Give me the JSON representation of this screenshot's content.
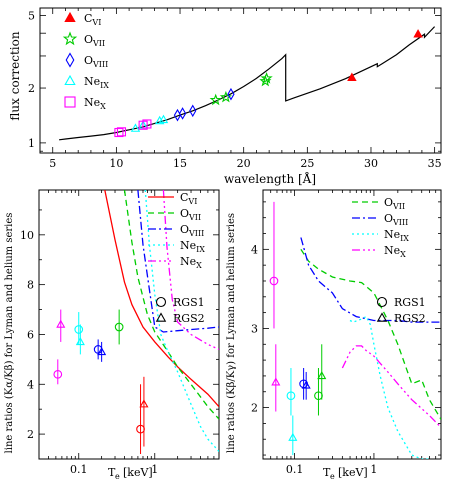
{
  "chart_data": [
    {
      "type": "scatter",
      "panel": "top",
      "xlabel": "wavelength [Å]",
      "ylabel": "flux correction",
      "xlim": [
        4,
        35.5
      ],
      "ylim": [
        0.88,
        5.5
      ],
      "yscale": "log",
      "xticks": [
        5,
        10,
        15,
        20,
        25,
        30,
        35
      ],
      "yticks": [
        1,
        2,
        5
      ],
      "curve": {
        "name": "",
        "color": "#000000",
        "x": [
          5.5,
          6,
          7,
          8,
          9,
          10,
          11,
          12,
          13,
          14,
          15,
          16,
          17,
          18,
          19,
          20,
          21,
          22,
          23,
          23.3,
          23.3,
          24,
          26,
          28,
          30,
          30.5,
          30.5,
          31,
          32,
          33,
          34.2,
          34.2,
          35
        ],
        "y": [
          1.04,
          1.05,
          1.07,
          1.09,
          1.11,
          1.14,
          1.18,
          1.22,
          1.28,
          1.34,
          1.42,
          1.5,
          1.6,
          1.72,
          1.86,
          2.04,
          2.26,
          2.55,
          2.9,
          3.05,
          1.7,
          1.77,
          1.98,
          2.25,
          2.62,
          2.72,
          2.62,
          2.75,
          3.05,
          3.45,
          3.95,
          3.8,
          4.35
        ]
      },
      "series": [
        {
          "name": "C",
          "sub": "VI",
          "marker": "triangle-filled",
          "color": "#ff0000",
          "x": [
            28.5,
            33.7
          ],
          "y": [
            2.28,
            3.95
          ]
        },
        {
          "name": "O",
          "sub": "VII",
          "marker": "star",
          "color": "#00cc00",
          "x": [
            18.6,
            17.8,
            21.7,
            21.8
          ],
          "y": [
            1.78,
            1.72,
            2.18,
            2.26
          ]
        },
        {
          "name": "O",
          "sub": "VIII",
          "marker": "diamond",
          "color": "#0000ff",
          "x": [
            19.0,
            16.0,
            15.2,
            14.8
          ],
          "y": [
            1.85,
            1.5,
            1.45,
            1.42
          ]
        },
        {
          "name": "Ne",
          "sub": "IX",
          "marker": "triangle-open",
          "color": "#00ffff",
          "x": [
            11.5,
            12.1,
            13.4,
            13.7
          ],
          "y": [
            1.2,
            1.25,
            1.32,
            1.34
          ]
        },
        {
          "name": "Ne",
          "sub": "X",
          "marker": "square",
          "color": "#ff00ff",
          "x": [
            10.2,
            10.4,
            12.1,
            12.4
          ],
          "y": [
            1.14,
            1.15,
            1.25,
            1.27
          ]
        }
      ]
    },
    {
      "type": "line",
      "panel": "bottom-left",
      "xlabel": "T",
      "xlabel_sub": "e",
      "xlabel_unit": "[keV]",
      "ylabel": "line ratios (Kα/Kβ) for Lyman and helium series",
      "xscale": "log",
      "xlim": [
        0.03,
        7
      ],
      "ylim": [
        1,
        11.8
      ],
      "xticks": [
        0.1,
        1
      ],
      "yticks": [
        2,
        4,
        6,
        8,
        10
      ],
      "series": [
        {
          "name": "C",
          "sub": "VI",
          "dash": "solid",
          "color": "#ff0000",
          "x": [
            0.22,
            0.3,
            0.4,
            0.5,
            0.7,
            1,
            1.5,
            2,
            3,
            5,
            7
          ],
          "y": [
            11.8,
            9.8,
            8.1,
            7.2,
            6.3,
            5.7,
            5.1,
            4.7,
            4.2,
            3.6,
            3.1
          ]
        },
        {
          "name": "O",
          "sub": "VII",
          "dash": "6,4",
          "color": "#00cc00",
          "x": [
            0.4,
            0.5,
            0.6,
            0.8,
            1,
            1.5,
            2,
            3,
            5,
            7
          ],
          "y": [
            11.8,
            9.7,
            8.3,
            6.8,
            6.1,
            5.3,
            4.7,
            4.0,
            3.1,
            2.6
          ]
        },
        {
          "name": "O",
          "sub": "VIII",
          "dash": "8,3,2,3",
          "color": "#0000ff",
          "x": [
            0.6,
            0.7,
            0.85,
            1,
            1.3,
            2,
            3,
            5,
            7
          ],
          "y": [
            11.8,
            9.6,
            7.8,
            6.3,
            6.1,
            6.15,
            6.2,
            6.25,
            6.3
          ]
        },
        {
          "name": "Ne",
          "sub": "IX",
          "dash": "2,3",
          "color": "#00ffff",
          "x": [
            0.75,
            0.85,
            1,
            1.2,
            1.5,
            2,
            3,
            4,
            5,
            7
          ],
          "y": [
            11.8,
            9.6,
            7.6,
            6.0,
            5.3,
            4.5,
            3.2,
            2.3,
            1.8,
            1.3
          ]
        },
        {
          "name": "Ne",
          "sub": "X",
          "dash": "8,3,2,3,2,3,2,3",
          "color": "#ff00ff",
          "x": [
            1.3,
            1.45,
            1.7,
            2,
            3,
            5,
            7
          ],
          "y": [
            11.8,
            9.5,
            7.4,
            6.5,
            6.0,
            5.6,
            5.4
          ]
        }
      ],
      "points": [
        {
          "label": "RGS1",
          "marker": "circle",
          "color": "#ff0000",
          "x": 0.65,
          "y": 2.2,
          "err": [
            1.2,
            4.0
          ]
        },
        {
          "label": "RGS2",
          "marker": "triangle-open",
          "color": "#ff0000",
          "x": 0.72,
          "y": 3.2,
          "err": [
            1.5,
            4.3
          ]
        },
        {
          "label": "RGS1",
          "marker": "circle",
          "color": "#00cc00",
          "x": 0.34,
          "y": 6.3,
          "err": [
            5.6,
            7.0
          ]
        },
        {
          "label": "RGS1",
          "marker": "circle",
          "color": "#0000ff",
          "x": 0.18,
          "y": 5.4,
          "err": [
            5.0,
            5.8
          ]
        },
        {
          "label": "RGS2",
          "marker": "triangle-open",
          "color": "#0000ff",
          "x": 0.2,
          "y": 5.3,
          "err": [
            4.9,
            5.7
          ]
        },
        {
          "label": "RGS1",
          "marker": "circle",
          "color": "#00ffff",
          "x": 0.1,
          "y": 6.2,
          "err": [
            5.6,
            6.9
          ]
        },
        {
          "label": "RGS2",
          "marker": "triangle-open",
          "color": "#00ffff",
          "x": 0.105,
          "y": 5.7,
          "err": [
            5.2,
            6.4
          ]
        },
        {
          "label": "RGS1",
          "marker": "circle",
          "color": "#ff00ff",
          "x": 0.053,
          "y": 4.4,
          "err": [
            4.0,
            5.0
          ]
        },
        {
          "label": "RGS2",
          "marker": "triangle-open",
          "color": "#ff00ff",
          "x": 0.058,
          "y": 6.4,
          "err": [
            5.7,
            7.0
          ]
        }
      ],
      "legend_instruments": [
        {
          "label": "RGS1",
          "marker": "circle"
        },
        {
          "label": "RGS2",
          "marker": "triangle-open"
        }
      ]
    },
    {
      "type": "line",
      "panel": "bottom-right",
      "xlabel": "T",
      "xlabel_sub": "e",
      "xlabel_unit": "[keV]",
      "ylabel": "line ratios (Kβ/Kγ) for Lyman and helium series",
      "xscale": "log",
      "xlim": [
        0.04,
        7
      ],
      "ylim": [
        1.35,
        4.75
      ],
      "xticks": [
        0.1,
        1
      ],
      "yticks": [
        2,
        3,
        4
      ],
      "series": [
        {
          "name": "O",
          "sub": "VII",
          "dash": "6,4",
          "color": "#00cc00",
          "x": [
            0.12,
            0.15,
            0.2,
            0.3,
            0.5,
            0.7,
            1,
            1.5,
            2,
            3,
            4,
            5,
            7
          ],
          "y": [
            4.0,
            3.85,
            3.75,
            3.65,
            3.6,
            3.58,
            3.45,
            3.1,
            2.8,
            2.3,
            2.35,
            2.1,
            1.85
          ]
        },
        {
          "name": "O",
          "sub": "VIII",
          "dash": "8,3,2,3",
          "color": "#0000ff",
          "x": [
            0.12,
            0.15,
            0.2,
            0.3,
            0.4,
            0.6,
            1,
            1.5,
            2,
            3,
            7
          ],
          "y": [
            4.15,
            3.8,
            3.6,
            3.45,
            3.25,
            3.15,
            3.1,
            3.1,
            3.1,
            3.08,
            3.08
          ]
        },
        {
          "name": "Ne",
          "sub": "IX",
          "dash": "2,3",
          "color": "#00ffff",
          "x": [
            0.5,
            0.55,
            0.7,
            0.8,
            0.9,
            1,
            1.2,
            1.5,
            2,
            3,
            4,
            5
          ],
          "y": [
            3.1,
            3.08,
            3.12,
            3.15,
            3.05,
            2.8,
            2.4,
            2.0,
            1.7,
            1.4,
            1.35,
            1.35
          ]
        },
        {
          "name": "Ne",
          "sub": "X",
          "dash": "8,3,2,3,2,3,2,3",
          "color": "#ff00ff",
          "x": [
            0.4,
            0.5,
            0.6,
            0.7,
            0.8,
            1,
            1.5,
            2,
            3,
            5,
            7
          ],
          "y": [
            2.5,
            2.7,
            2.78,
            2.78,
            2.72,
            2.65,
            2.45,
            2.3,
            2.1,
            1.9,
            1.75
          ]
        }
      ],
      "points": [
        {
          "label": "RGS1",
          "marker": "circle",
          "color": "#ff00ff",
          "x": 0.055,
          "y": 3.6,
          "err": [
            3.0,
            4.6
          ]
        },
        {
          "label": "RGS2",
          "marker": "triangle-open",
          "color": "#ff00ff",
          "x": 0.058,
          "y": 2.32,
          "err": [
            1.95,
            2.8
          ]
        },
        {
          "label": "RGS1",
          "marker": "circle",
          "color": "#00ffff",
          "x": 0.09,
          "y": 2.15,
          "err": [
            1.9,
            2.5
          ]
        },
        {
          "label": "RGS2",
          "marker": "triangle-open",
          "color": "#00ffff",
          "x": 0.095,
          "y": 1.62,
          "err": [
            1.4,
            1.9
          ]
        },
        {
          "label": "RGS1",
          "marker": "circle",
          "color": "#0000ff",
          "x": 0.13,
          "y": 2.3,
          "err": [
            2.1,
            2.5
          ]
        },
        {
          "label": "RGS2",
          "marker": "triangle-open",
          "color": "#0000ff",
          "x": 0.14,
          "y": 2.28,
          "err": [
            2.1,
            2.45
          ]
        },
        {
          "label": "RGS1",
          "marker": "circle",
          "color": "#00cc00",
          "x": 0.2,
          "y": 2.15,
          "err": [
            1.9,
            2.5
          ]
        },
        {
          "label": "RGS2",
          "marker": "triangle-open",
          "color": "#00cc00",
          "x": 0.22,
          "y": 2.4,
          "err": [
            2.1,
            2.8
          ]
        }
      ],
      "legend_instruments": [
        {
          "label": "RGS1",
          "marker": "circle"
        },
        {
          "label": "RGS2",
          "marker": "triangle-open"
        }
      ]
    }
  ]
}
